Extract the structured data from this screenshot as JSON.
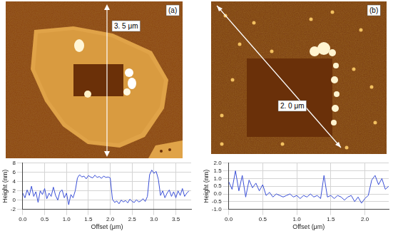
{
  "images": [
    {
      "label": "(a)",
      "scale_bar": "3. 5 μm"
    },
    {
      "label": "(b)",
      "scale_bar": "2. 0 μm"
    }
  ],
  "chart_data": [
    {
      "type": "line",
      "color": "#3a4fd6",
      "grid": true,
      "x_label": "Offset (μm)",
      "y_label": "Height (nm)",
      "xlim": [
        0,
        3.85
      ],
      "ylim": [
        -2,
        8
      ],
      "xticks": [
        {
          "value": 0,
          "label": "0.0"
        },
        0.5,
        {
          "value": 1,
          "label": "1.0"
        },
        1.5,
        {
          "value": 2,
          "label": "2.0"
        },
        2.5,
        {
          "value": 3,
          "label": "3.0"
        },
        3.5
      ],
      "yticks": [
        -2,
        0,
        2,
        4,
        6,
        8
      ],
      "x": [
        0,
        0.05,
        0.1,
        0.15,
        0.2,
        0.25,
        0.3,
        0.35,
        0.4,
        0.45,
        0.5,
        0.55,
        0.6,
        0.65,
        0.7,
        0.75,
        0.8,
        0.85,
        0.9,
        0.95,
        1.0,
        1.05,
        1.1,
        1.15,
        1.2,
        1.25,
        1.3,
        1.35,
        1.4,
        1.45,
        1.5,
        1.55,
        1.6,
        1.65,
        1.7,
        1.75,
        1.8,
        1.85,
        1.9,
        1.95,
        2.0,
        2.05,
        2.1,
        2.15,
        2.2,
        2.25,
        2.3,
        2.35,
        2.4,
        2.45,
        2.5,
        2.55,
        2.6,
        2.65,
        2.7,
        2.75,
        2.8,
        2.85,
        2.9,
        2.95,
        3.0,
        3.05,
        3.1,
        3.15,
        3.2,
        3.25,
        3.3,
        3.35,
        3.4,
        3.45,
        3.5,
        3.55,
        3.6,
        3.65,
        3.7,
        3.75,
        3.8
      ],
      "values": [
        1.5,
        0.5,
        2.2,
        1.0,
        3.0,
        0.8,
        1.8,
        -0.5,
        2.0,
        1.2,
        2.5,
        0.3,
        1.5,
        0.8,
        2.8,
        1.0,
        0.0,
        1.8,
        2.2,
        0.5,
        1.5,
        -1.0,
        1.2,
        0.5,
        2.0,
        4.8,
        5.5,
        5.0,
        5.2,
        4.6,
        5.3,
        5.0,
        4.8,
        5.4,
        4.9,
        5.1,
        4.7,
        5.2,
        4.9,
        5.0,
        4.8,
        0.2,
        -0.5,
        -0.2,
        -0.8,
        0.0,
        -0.4,
        -0.1,
        -0.6,
        0.2,
        -0.3,
        -0.5,
        0.1,
        -0.4,
        -0.2,
        0.3,
        -0.3,
        0.8,
        5.5,
        6.5,
        5.8,
        6.2,
        4.5,
        1.0,
        2.0,
        0.5,
        1.5,
        2.2,
        0.8,
        1.8,
        0.5,
        2.0,
        1.0,
        2.5,
        0.8,
        1.5,
        2.0
      ]
    },
    {
      "type": "line",
      "color": "#3a4fd6",
      "grid": true,
      "x_label": "Offset (μm)",
      "y_label": "Height (nm)",
      "xlim": [
        0,
        2.35
      ],
      "ylim": [
        -1,
        2
      ],
      "xticks": [
        {
          "value": 0,
          "label": "0.0"
        },
        0.5,
        {
          "value": 1,
          "label": "1.0"
        },
        1.5,
        {
          "value": 2,
          "label": "2.0"
        }
      ],
      "yticks": [
        {
          "value": -1,
          "label": "-1.0"
        },
        -0.5,
        {
          "value": 0,
          "label": "0.0"
        },
        0.5,
        {
          "value": 1,
          "label": "1.0"
        },
        1.5,
        {
          "value": 2,
          "label": "2.0"
        }
      ],
      "x": [
        0,
        0.05,
        0.1,
        0.15,
        0.2,
        0.25,
        0.3,
        0.35,
        0.4,
        0.45,
        0.5,
        0.55,
        0.6,
        0.65,
        0.7,
        0.75,
        0.8,
        0.85,
        0.9,
        0.95,
        1.0,
        1.05,
        1.1,
        1.15,
        1.2,
        1.25,
        1.3,
        1.35,
        1.4,
        1.45,
        1.5,
        1.55,
        1.6,
        1.65,
        1.7,
        1.75,
        1.8,
        1.85,
        1.9,
        1.95,
        2.0,
        2.05,
        2.1,
        2.15,
        2.2,
        2.25,
        2.3,
        2.35
      ],
      "values": [
        0.8,
        0.3,
        1.5,
        0.2,
        1.2,
        -0.2,
        0.9,
        0.4,
        0.7,
        0.2,
        0.6,
        -0.1,
        0.1,
        -0.2,
        0.0,
        -0.1,
        -0.2,
        -0.1,
        0.0,
        -0.2,
        -0.1,
        -0.3,
        -0.1,
        -0.2,
        0.0,
        -0.2,
        -0.1,
        -0.3,
        1.2,
        -0.2,
        -0.1,
        -0.3,
        -0.1,
        -0.2,
        -0.4,
        -0.2,
        -0.1,
        -0.5,
        -0.2,
        -0.6,
        -0.3,
        -0.1,
        0.9,
        1.2,
        0.6,
        1.0,
        0.3,
        0.5
      ]
    }
  ]
}
